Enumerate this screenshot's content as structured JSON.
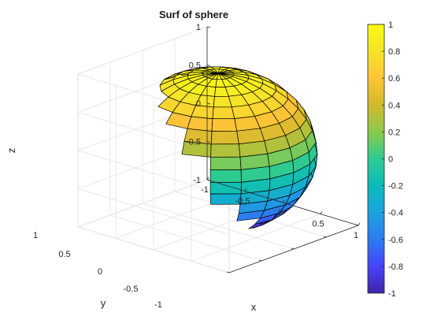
{
  "chart_data": {
    "type": "surface",
    "title": "Surf of sphere",
    "xlabel": "x",
    "ylabel": "y",
    "zlabel": "z",
    "xlim": [
      -1,
      1
    ],
    "ylim": [
      -1,
      1
    ],
    "zlim": [
      -1,
      1
    ],
    "x_ticks": [
      "-1",
      "-0.5",
      "0",
      "0.5",
      "1"
    ],
    "y_ticks": [
      "-1",
      "-0.5",
      "0",
      "0.5",
      "1"
    ],
    "z_ticks": [
      "-1",
      "-0.5",
      "0",
      "0.5",
      "1"
    ],
    "surface": {
      "shape": "unit sphere",
      "meridians": 20,
      "parallels": 20
    },
    "grid": true,
    "colormap": "parula",
    "colorbar": {
      "location": "right",
      "range": [
        -1,
        1
      ],
      "ticks": [
        "1",
        "0.8",
        "0.6",
        "0.4",
        "0.2",
        "0",
        "-0.2",
        "-0.4",
        "-0.6",
        "-0.8",
        "-1"
      ],
      "colors": [
        "#3e26a8",
        "#4743f8",
        "#2c7cf2",
        "#1ca2de",
        "#0bbbbb",
        "#2ecb91",
        "#8bca4c",
        "#d2b92d",
        "#fec538",
        "#f5e328",
        "#f9fb15"
      ]
    }
  }
}
